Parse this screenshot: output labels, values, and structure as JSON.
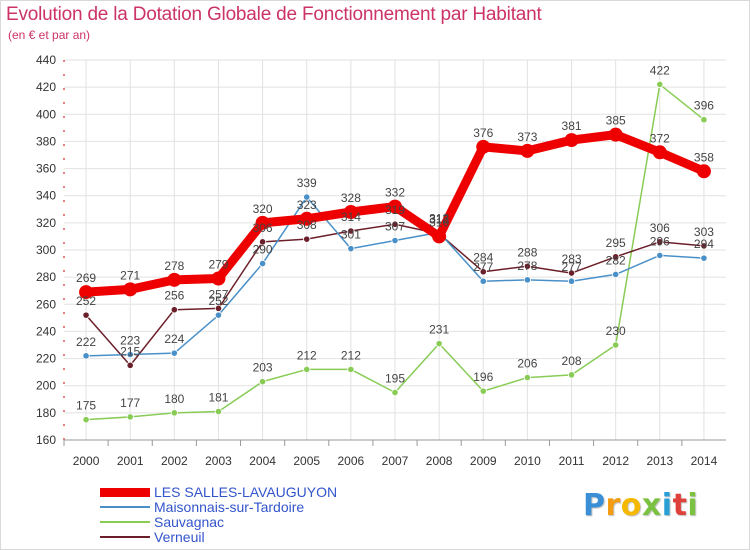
{
  "title": "Evolution de la Dotation Globale de Fonctionnement par Habitant",
  "subtitle": "(en € et par an)",
  "logo": "Proxiti",
  "chart_data": {
    "type": "line",
    "title": "Evolution de la Dotation Globale de Fonctionnement par Habitant",
    "subtitle": "(en € et par an)",
    "xlabel": "",
    "ylabel": "",
    "x": [
      "2000",
      "2001",
      "2002",
      "2003",
      "2004",
      "2005",
      "2006",
      "2007",
      "2008",
      "2009",
      "2010",
      "2011",
      "2012",
      "2013",
      "2014"
    ],
    "ylim": [
      160,
      440
    ],
    "yticks": [
      160,
      180,
      200,
      220,
      240,
      260,
      280,
      300,
      320,
      340,
      360,
      380,
      400,
      420,
      440
    ],
    "grid": true,
    "legend_position": "bottom-left",
    "series": [
      {
        "name": "LES SALLES-LAVAUGUYON",
        "color": "#ee0000",
        "values": [
          269,
          271,
          278,
          279,
          320,
          323,
          328,
          332,
          310,
          376,
          373,
          381,
          385,
          372,
          358
        ]
      },
      {
        "name": "Maisonnais-sur-Tardoire",
        "color": "#4a90c8",
        "values": [
          222,
          223,
          224,
          252,
          290,
          339,
          301,
          307,
          313,
          277,
          278,
          277,
          282,
          296,
          294
        ]
      },
      {
        "name": "Sauvagnac",
        "color": "#88cc55",
        "values": [
          175,
          177,
          180,
          181,
          203,
          212,
          212,
          195,
          231,
          196,
          206,
          208,
          230,
          422,
          396
        ]
      },
      {
        "name": "Verneuil",
        "color": "#6b1f2a",
        "values": [
          252,
          215,
          256,
          257,
          306,
          308,
          314,
          319,
          312,
          284,
          288,
          283,
          295,
          306,
          303
        ]
      }
    ]
  }
}
